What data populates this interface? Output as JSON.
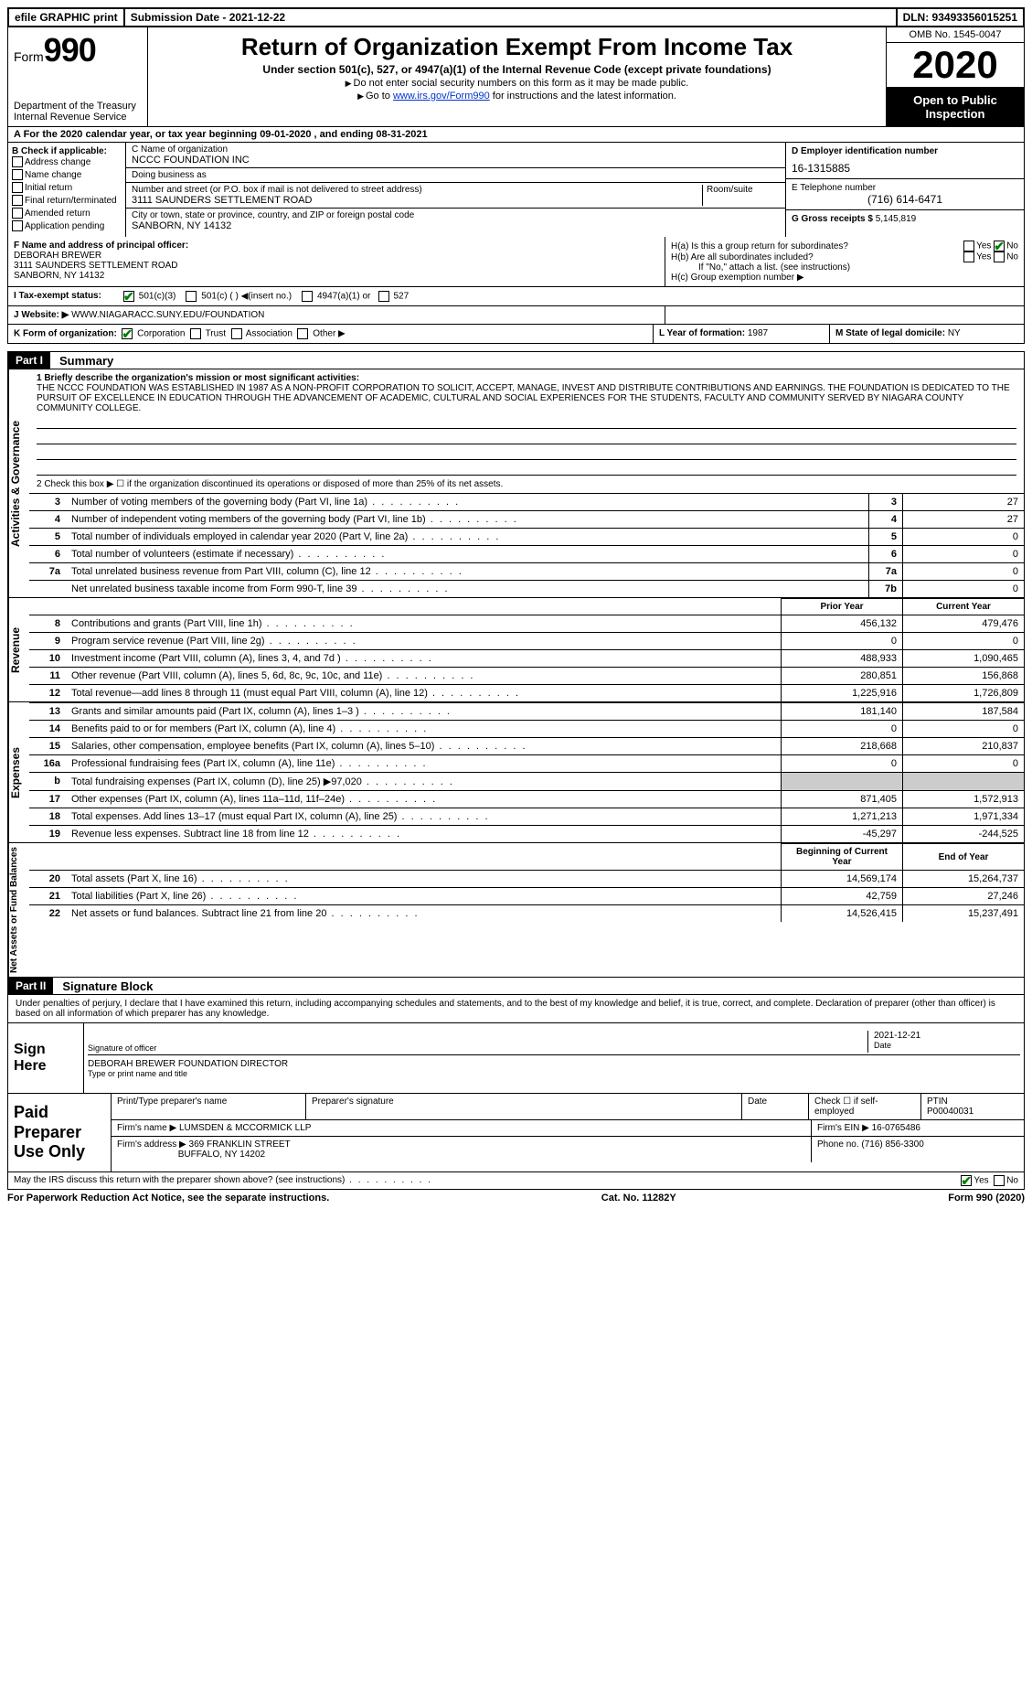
{
  "topbar": {
    "efile": "efile GRAPHIC print",
    "submission": "Submission Date - 2021-12-22",
    "dln": "DLN: 93493356015251"
  },
  "header": {
    "form_label": "Form",
    "form_num": "990",
    "dept": "Department of the Treasury\nInternal Revenue Service",
    "title": "Return of Organization Exempt From Income Tax",
    "subtitle": "Under section 501(c), 527, or 4947(a)(1) of the Internal Revenue Code (except private foundations)",
    "note1": "Do not enter social security numbers on this form as it may be made public.",
    "note2_pre": "Go to ",
    "note2_link": "www.irs.gov/Form990",
    "note2_post": " for instructions and the latest information.",
    "omb": "OMB No. 1545-0047",
    "year": "2020",
    "open": "Open to Public Inspection"
  },
  "row_a": "A For the 2020 calendar year, or tax year beginning 09-01-2020   , and ending 08-31-2021",
  "box_b": {
    "hdr": "B Check if applicable:",
    "items": [
      "Address change",
      "Name change",
      "Initial return",
      "Final return/terminated",
      "Amended return",
      "Application pending"
    ]
  },
  "box_c": {
    "name_lbl": "C Name of organization",
    "name": "NCCC FOUNDATION INC",
    "dba_lbl": "Doing business as",
    "dba": "",
    "addr_lbl": "Number and street (or P.O. box if mail is not delivered to street address)",
    "addr": "3111 SAUNDERS SETTLEMENT ROAD",
    "room_lbl": "Room/suite",
    "city_lbl": "City or town, state or province, country, and ZIP or foreign postal code",
    "city": "SANBORN, NY  14132"
  },
  "box_d": {
    "lbl": "D Employer identification number",
    "val": "16-1315885"
  },
  "box_e": {
    "lbl": "E Telephone number",
    "val": "(716) 614-6471"
  },
  "box_g": {
    "lbl": "G Gross receipts $",
    "val": "5,145,819"
  },
  "box_f": {
    "lbl": "F Name and address of principal officer:",
    "name": "DEBORAH BREWER",
    "addr1": "3111 SAUNDERS SETTLEMENT ROAD",
    "addr2": "SANBORN, NY  14132"
  },
  "box_h": {
    "a_lbl": "H(a)  Is this a group return for subordinates?",
    "b_lbl": "H(b)  Are all subordinates included?",
    "b_note": "If \"No,\" attach a list. (see instructions)",
    "c_lbl": "H(c)  Group exemption number ▶"
  },
  "row_i": {
    "lbl": "I   Tax-exempt status:",
    "opts": [
      "501(c)(3)",
      "501(c) (  ) ◀(insert no.)",
      "4947(a)(1) or",
      "527"
    ]
  },
  "row_j": {
    "lbl": "J  Website: ▶",
    "val": "WWW.NIAGARACC.SUNY.EDU/FOUNDATION"
  },
  "row_k": {
    "lbl": "K Form of organization:",
    "opts": [
      "Corporation",
      "Trust",
      "Association",
      "Other ▶"
    ],
    "l_lbl": "L Year of formation:",
    "l_val": "1987",
    "m_lbl": "M State of legal domicile:",
    "m_val": "NY"
  },
  "part1": {
    "hdr": "Part I",
    "title": "Summary",
    "q1_lbl": "1   Briefly describe the organization's mission or most significant activities:",
    "mission": "THE NCCC FOUNDATION WAS ESTABLISHED IN 1987 AS A NON-PROFIT CORPORATION TO SOLICIT, ACCEPT, MANAGE, INVEST AND DISTRIBUTE CONTRIBUTIONS AND EARNINGS. THE FOUNDATION IS DEDICATED TO THE PURSUIT OF EXCELLENCE IN EDUCATION THROUGH THE ADVANCEMENT OF ACADEMIC, CULTURAL AND SOCIAL EXPERIENCES FOR THE STUDENTS, FACULTY AND COMMUNITY SERVED BY NIAGARA COUNTY COMMUNITY COLLEGE.",
    "q2": "2   Check this box ▶ ☐  if the organization discontinued its operations or disposed of more than 25% of its net assets."
  },
  "activities": {
    "label": "Activities & Governance",
    "rows": [
      {
        "n": "3",
        "d": "Number of voting members of the governing body (Part VI, line 1a)",
        "ln": "3",
        "v": "27"
      },
      {
        "n": "4",
        "d": "Number of independent voting members of the governing body (Part VI, line 1b)",
        "ln": "4",
        "v": "27"
      },
      {
        "n": "5",
        "d": "Total number of individuals employed in calendar year 2020 (Part V, line 2a)",
        "ln": "5",
        "v": "0"
      },
      {
        "n": "6",
        "d": "Total number of volunteers (estimate if necessary)",
        "ln": "6",
        "v": "0"
      },
      {
        "n": "7a",
        "d": "Total unrelated business revenue from Part VIII, column (C), line 12",
        "ln": "7a",
        "v": "0"
      },
      {
        "n": "",
        "d": "Net unrelated business taxable income from Form 990-T, line 39",
        "ln": "7b",
        "v": "0"
      }
    ]
  },
  "revenue": {
    "label": "Revenue",
    "hdr_prior": "Prior Year",
    "hdr_current": "Current Year",
    "rows": [
      {
        "n": "8",
        "d": "Contributions and grants (Part VIII, line 1h)",
        "p": "456,132",
        "c": "479,476"
      },
      {
        "n": "9",
        "d": "Program service revenue (Part VIII, line 2g)",
        "p": "0",
        "c": "0"
      },
      {
        "n": "10",
        "d": "Investment income (Part VIII, column (A), lines 3, 4, and 7d )",
        "p": "488,933",
        "c": "1,090,465"
      },
      {
        "n": "11",
        "d": "Other revenue (Part VIII, column (A), lines 5, 6d, 8c, 9c, 10c, and 11e)",
        "p": "280,851",
        "c": "156,868"
      },
      {
        "n": "12",
        "d": "Total revenue—add lines 8 through 11 (must equal Part VIII, column (A), line 12)",
        "p": "1,225,916",
        "c": "1,726,809"
      }
    ]
  },
  "expenses": {
    "label": "Expenses",
    "rows": [
      {
        "n": "13",
        "d": "Grants and similar amounts paid (Part IX, column (A), lines 1–3 )",
        "p": "181,140",
        "c": "187,584"
      },
      {
        "n": "14",
        "d": "Benefits paid to or for members (Part IX, column (A), line 4)",
        "p": "0",
        "c": "0"
      },
      {
        "n": "15",
        "d": "Salaries, other compensation, employee benefits (Part IX, column (A), lines 5–10)",
        "p": "218,668",
        "c": "210,837"
      },
      {
        "n": "16a",
        "d": "Professional fundraising fees (Part IX, column (A), line 11e)",
        "p": "0",
        "c": "0"
      },
      {
        "n": "b",
        "d": "Total fundraising expenses (Part IX, column (D), line 25) ▶97,020",
        "p": "",
        "c": "",
        "shade": true
      },
      {
        "n": "17",
        "d": "Other expenses (Part IX, column (A), lines 11a–11d, 11f–24e)",
        "p": "871,405",
        "c": "1,572,913"
      },
      {
        "n": "18",
        "d": "Total expenses. Add lines 13–17 (must equal Part IX, column (A), line 25)",
        "p": "1,271,213",
        "c": "1,971,334"
      },
      {
        "n": "19",
        "d": "Revenue less expenses. Subtract line 18 from line 12",
        "p": "-45,297",
        "c": "-244,525"
      }
    ]
  },
  "netassets": {
    "label": "Net Assets or Fund Balances",
    "hdr_begin": "Beginning of Current Year",
    "hdr_end": "End of Year",
    "rows": [
      {
        "n": "20",
        "d": "Total assets (Part X, line 16)",
        "p": "14,569,174",
        "c": "15,264,737"
      },
      {
        "n": "21",
        "d": "Total liabilities (Part X, line 26)",
        "p": "42,759",
        "c": "27,246"
      },
      {
        "n": "22",
        "d": "Net assets or fund balances. Subtract line 21 from line 20",
        "p": "14,526,415",
        "c": "15,237,491"
      }
    ]
  },
  "part2": {
    "hdr": "Part II",
    "title": "Signature Block",
    "declaration": "Under penalties of perjury, I declare that I have examined this return, including accompanying schedules and statements, and to the best of my knowledge and belief, it is true, correct, and complete. Declaration of preparer (other than officer) is based on all information of which preparer has any knowledge."
  },
  "sign": {
    "label": "Sign Here",
    "sig_lbl": "Signature of officer",
    "date": "2021-12-21",
    "date_lbl": "Date",
    "name": "DEBORAH BREWER  FOUNDATION DIRECTOR",
    "name_lbl": "Type or print name and title"
  },
  "preparer": {
    "label": "Paid Preparer Use Only",
    "print_lbl": "Print/Type preparer's name",
    "sig_lbl": "Preparer's signature",
    "date_lbl": "Date",
    "check_lbl": "Check ☐ if self-employed",
    "ptin_lbl": "PTIN",
    "ptin": "P00040031",
    "firm_name_lbl": "Firm's name    ▶",
    "firm_name": "LUMSDEN & MCCORMICK LLP",
    "firm_ein_lbl": "Firm's EIN ▶",
    "firm_ein": "16-0765486",
    "firm_addr_lbl": "Firm's address ▶",
    "firm_addr1": "369 FRANKLIN STREET",
    "firm_addr2": "BUFFALO, NY  14202",
    "phone_lbl": "Phone no.",
    "phone": "(716) 856-3300"
  },
  "discuss": {
    "q": "May the IRS discuss this return with the preparer shown above? (see instructions)",
    "yes": "Yes",
    "no": "No"
  },
  "bottom": {
    "left": "For Paperwork Reduction Act Notice, see the separate instructions.",
    "mid": "Cat. No. 11282Y",
    "right": "Form 990 (2020)"
  }
}
